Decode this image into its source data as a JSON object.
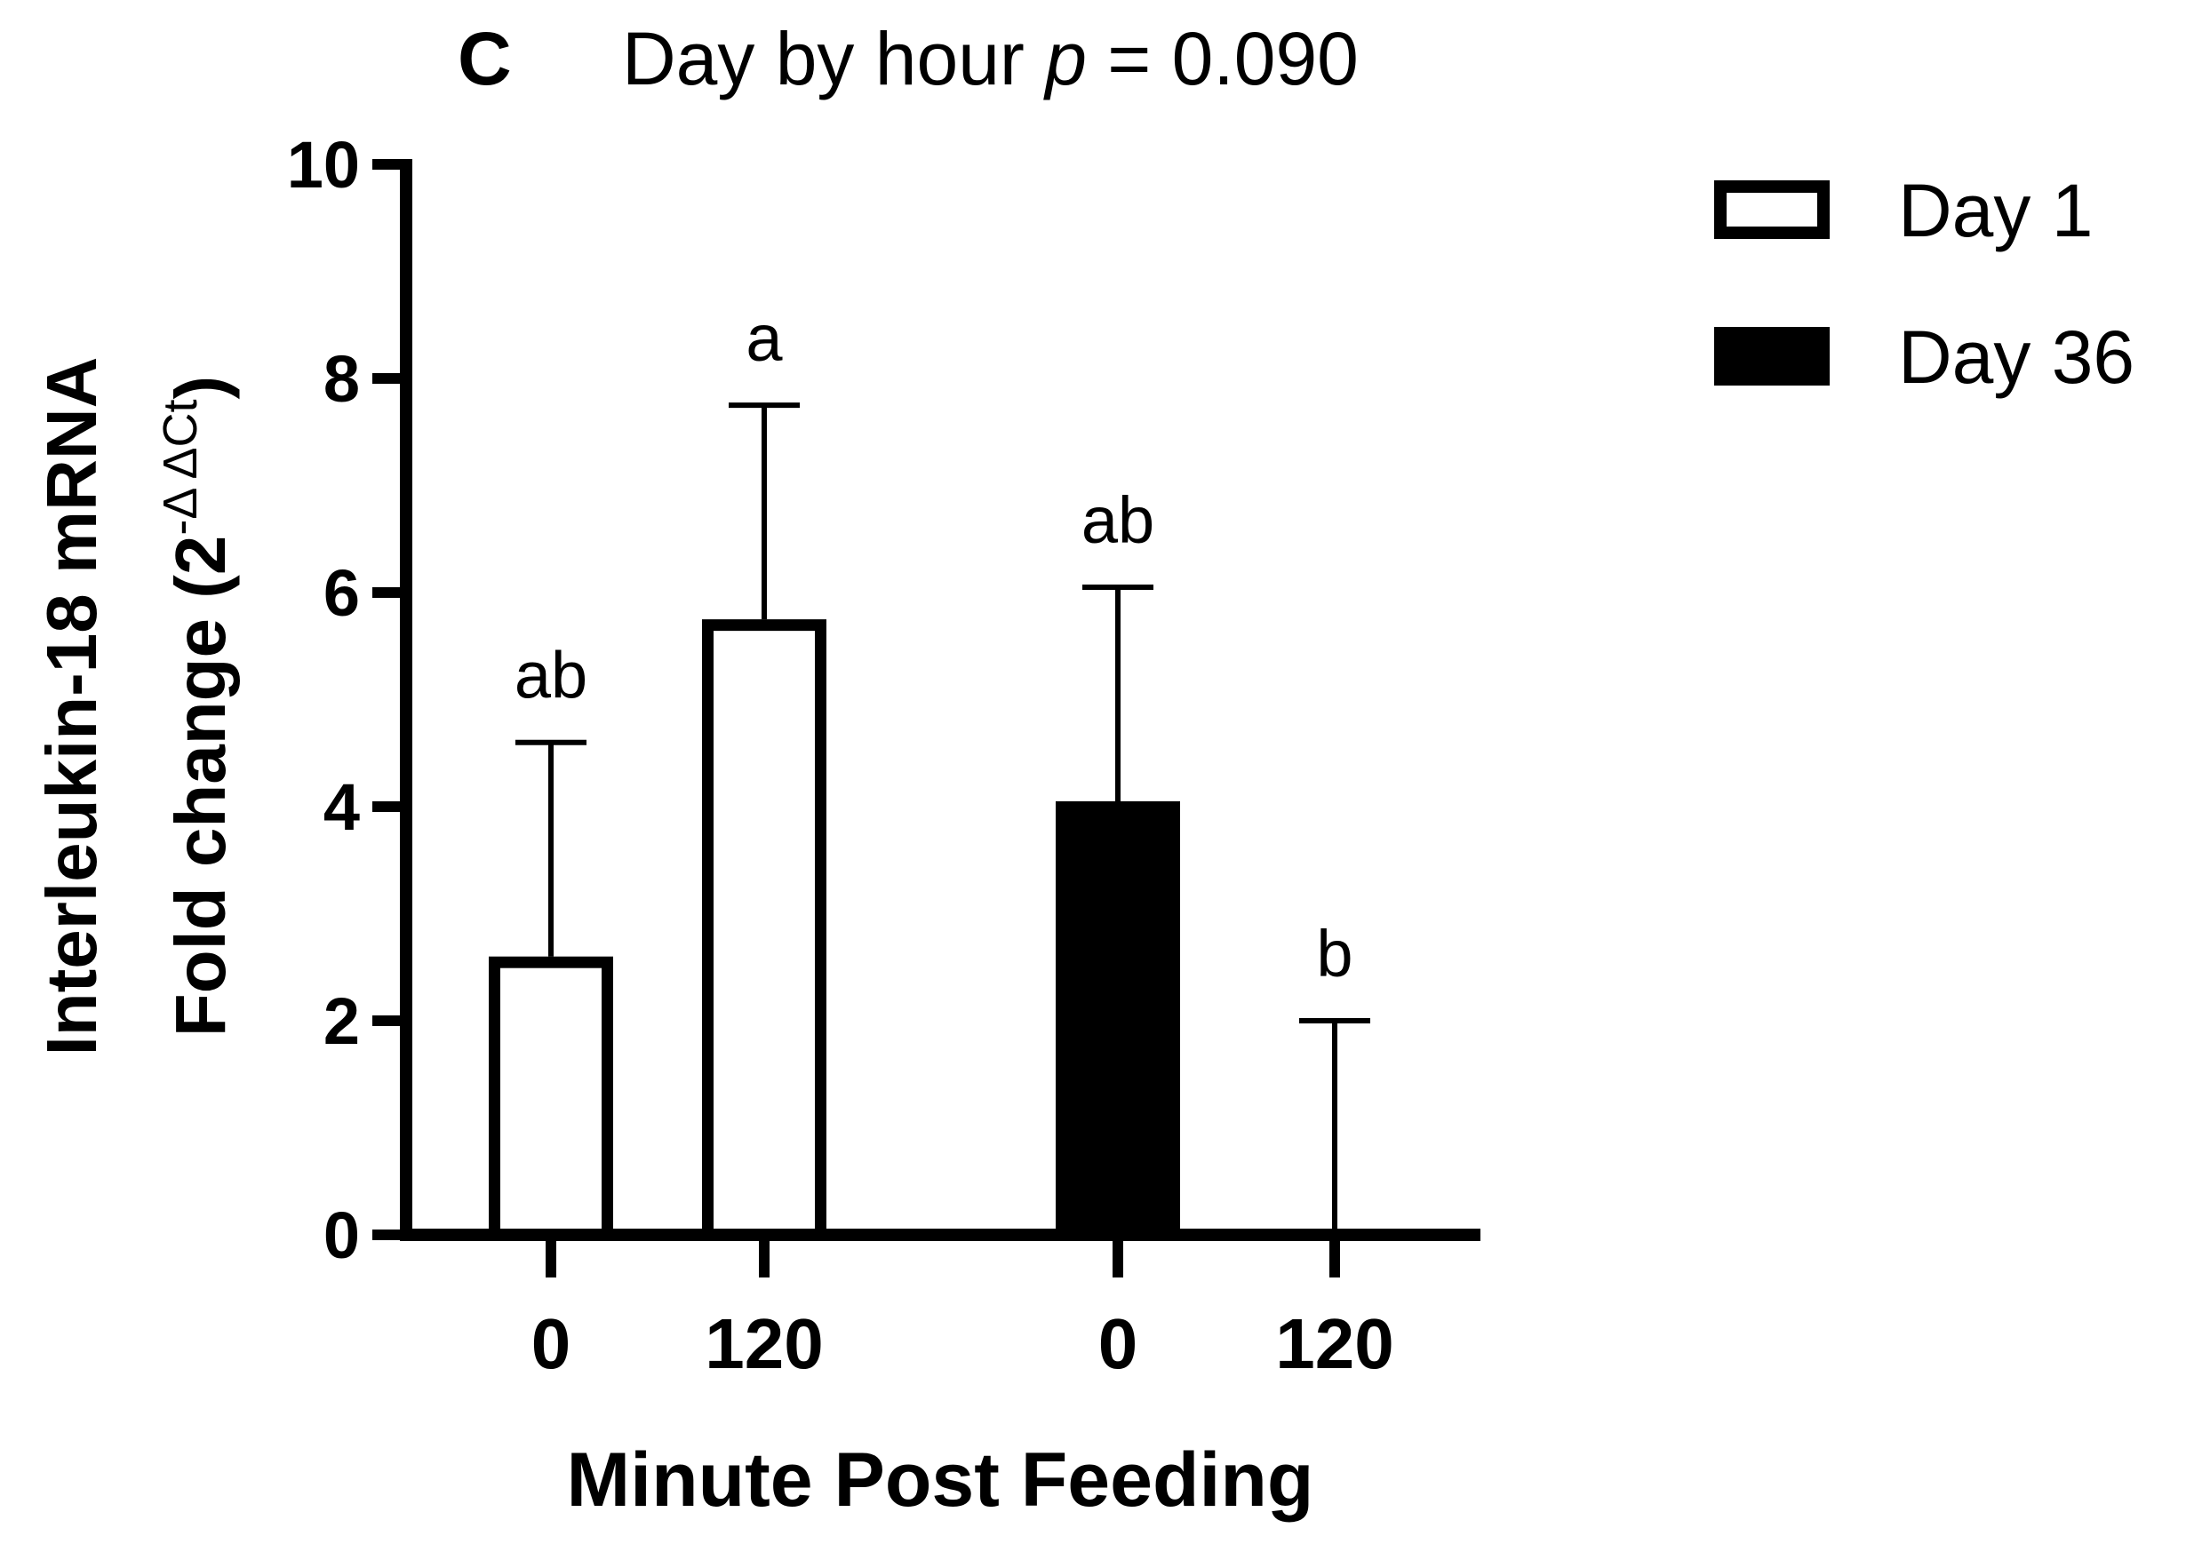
{
  "chart_data": {
    "type": "bar",
    "panel_letter": "C",
    "title_prefix": "Day by hour ",
    "title_p": "p",
    "title_suffix": " = 0.090",
    "ylabel_line1": "Interleukin-18 mRNA",
    "ylabel_line2_main": "Fold change (2",
    "ylabel_line2_sup": "-Δ ΔCt",
    "ylabel_line2_end": ")",
    "xlabel": "Minute Post Feeding",
    "ylim": [
      0,
      10
    ],
    "yticks": [
      0,
      2,
      4,
      6,
      8,
      10
    ],
    "categories": [
      "0",
      "120",
      "0",
      "120"
    ],
    "series": [
      {
        "name": "Day 1",
        "fill": "#ffffff",
        "values": [
          2.6,
          5.75,
          null,
          null
        ],
        "error": [
          2.0,
          2.0,
          null,
          null
        ],
        "letters": [
          "ab",
          "a",
          null,
          null
        ]
      },
      {
        "name": "Day 36",
        "fill": "#000000",
        "values": [
          null,
          null,
          4.05,
          0.0
        ],
        "error": [
          null,
          null,
          2.0,
          2.0
        ],
        "letters": [
          null,
          null,
          "ab",
          "b"
        ]
      }
    ],
    "legend_position": "top-right",
    "colors": {
      "axis": "#000000",
      "background": "#ffffff"
    }
  }
}
